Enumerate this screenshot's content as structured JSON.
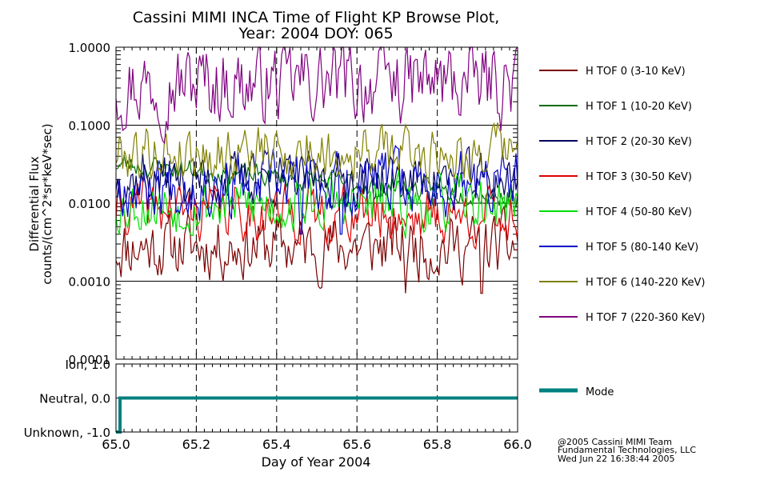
{
  "chart_data": [
    {
      "type": "line",
      "title": "Cassini MIMI INCA Time of Flight KP Browse Plot,",
      "subtitle": "Year: 2004 DOY: 065",
      "ylabel_line1": "Differential Flux",
      "ylabel_line2": "counts/(cm^2*sr*keV*sec)",
      "yscale": "log",
      "ylim": [
        0.0001,
        1.0
      ],
      "y_ticks": [
        {
          "value": 1.0,
          "label": "1.0000"
        },
        {
          "value": 0.1,
          "label": "0.1000"
        },
        {
          "value": 0.01,
          "label": "0.0100"
        },
        {
          "value": 0.001,
          "label": "0.0010"
        },
        {
          "value": 0.0001,
          "label": "0.0001"
        }
      ],
      "xlim": [
        65.0,
        66.0
      ],
      "grid": "horizontal lines at decades, dashed verticals at x ticks",
      "legend_position": "right",
      "series": [
        {
          "name": "H TOF 0 (3-10 KeV)",
          "color": "#7a0000",
          "base": 0.0028,
          "spread": 0.35,
          "seed": 11,
          "dips": [
            [
              65.72,
              0.0007
            ],
            [
              65.91,
              0.0007
            ]
          ]
        },
        {
          "name": "H TOF 1 (10-20 KeV)",
          "color": "#006d00",
          "base": 0.032,
          "end": 0.012,
          "spread": 0.12,
          "seed": 23,
          "dips": []
        },
        {
          "name": "H TOF 2 (20-30 KeV)",
          "color": "#00005f",
          "base": 0.02,
          "spread": 0.28,
          "seed": 37,
          "dips": []
        },
        {
          "name": "H TOF 3 (30-50 KeV)",
          "color": "#e00000",
          "base": 0.0085,
          "end": 0.0065,
          "spread": 0.3,
          "seed": 41,
          "dips": []
        },
        {
          "name": "H TOF 4 (50-80 KeV)",
          "color": "#00e000",
          "base": 0.0095,
          "spread": 0.3,
          "seed": 53,
          "dips": [
            [
              65.16,
              0.005
            ]
          ]
        },
        {
          "name": "H TOF 5 (80-140 KeV)",
          "color": "#0000c8",
          "base": 0.018,
          "spread": 0.35,
          "seed": 67,
          "dips": [
            [
              65.46,
              0.004
            ],
            [
              65.56,
              0.004
            ]
          ]
        },
        {
          "name": "H TOF 6 (140-220 KeV)",
          "color": "#808000",
          "base": 0.045,
          "spread": 0.3,
          "seed": 79,
          "dips": []
        },
        {
          "name": "H TOF 7 (220-360 KeV)",
          "color": "#800080",
          "base": 0.35,
          "spread": 0.45,
          "seed": 97,
          "dips": []
        }
      ]
    },
    {
      "type": "line",
      "xlabel": "Day of Year 2004",
      "x_ticks": [
        "65.0",
        "65.2",
        "65.4",
        "65.6",
        "65.8",
        "66.0"
      ],
      "x_tick_values": [
        65.0,
        65.2,
        65.4,
        65.6,
        65.8,
        66.0
      ],
      "ylim": [
        -1.0,
        1.0
      ],
      "y_ticks": [
        {
          "value": 1.0,
          "label": "Ion, 1.0"
        },
        {
          "value": 0.0,
          "label": "Neutral, 0.0"
        },
        {
          "value": -1.0,
          "label": "Unknown, -1.0"
        }
      ],
      "series": [
        {
          "name": "Mode",
          "color": "#008080",
          "x": [
            65.0,
            65.01,
            65.01,
            66.0
          ],
          "values": [
            -1.0,
            -1.0,
            0.0,
            0.0
          ]
        }
      ]
    }
  ],
  "footer": {
    "line1": "@2005 Cassini MIMI Team",
    "line2": "Fundamental Technologies, LLC",
    "line3": "Wed Jun 22 16:38:44 2005"
  }
}
